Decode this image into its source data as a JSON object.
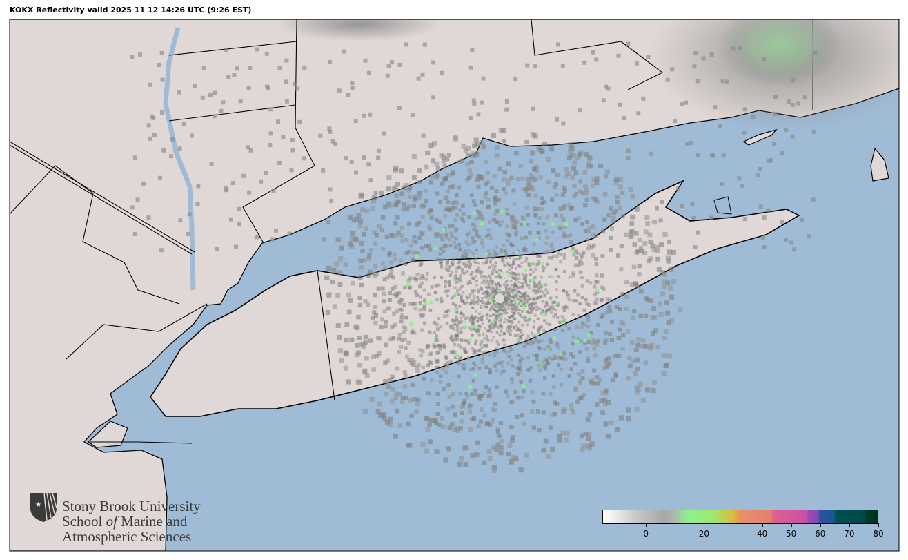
{
  "title": "KOKX Reflectivity valid 2025 11 12 14:26 UTC (9:26 EST)",
  "map": {
    "radar_site": "KOKX",
    "land_color": "#e0d8d6",
    "water_color": "#9fbbd6",
    "border_color": "#000000"
  },
  "logo": {
    "icon": "sbu-shield-icon",
    "line1": "Stony Brook University",
    "line2_a": "School ",
    "line2_of": "of",
    "line2_b": " Marine and",
    "line3": "Atmospheric Sciences"
  },
  "colorbar": {
    "min": -15,
    "max": 80,
    "ticks": [
      0,
      20,
      40,
      50,
      60,
      70,
      80
    ],
    "tick_labels": [
      "0",
      "20",
      "40",
      "50",
      "60",
      "70",
      "80"
    ]
  }
}
